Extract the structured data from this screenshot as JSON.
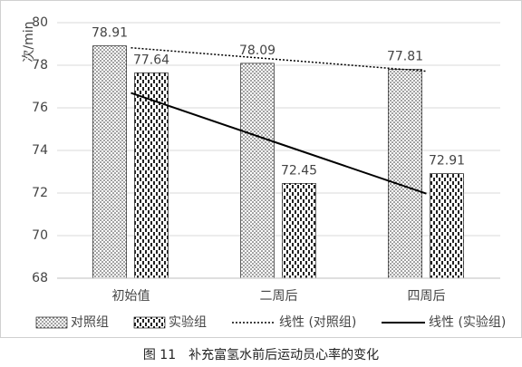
{
  "chart_data": {
    "type": "bar",
    "y_label": "次/min",
    "caption": "图 11　补充富氢水前后运动员心率的变化",
    "categories": [
      "初始值",
      "二周后",
      "四周后"
    ],
    "series": [
      {
        "name": "对照组",
        "color": "#000000",
        "pattern": "dots",
        "values": [
          78.91,
          78.09,
          77.81
        ]
      },
      {
        "name": "实验组",
        "color": "#000000",
        "pattern": "dashes",
        "values": [
          77.64,
          72.45,
          72.91
        ]
      }
    ],
    "trendlines": [
      {
        "name": "线性 (对照组)",
        "color": "#000000",
        "dashed": true,
        "values": [
          78.82,
          78.27,
          77.72
        ]
      },
      {
        "name": "线性 (实验组)",
        "color": "#000000",
        "dashed": false,
        "values": [
          76.7,
          74.33,
          71.97
        ]
      }
    ],
    "ylim": [
      68,
      80
    ],
    "yticks": [
      68,
      70,
      72,
      74,
      76,
      78,
      80
    ],
    "grid": true
  }
}
